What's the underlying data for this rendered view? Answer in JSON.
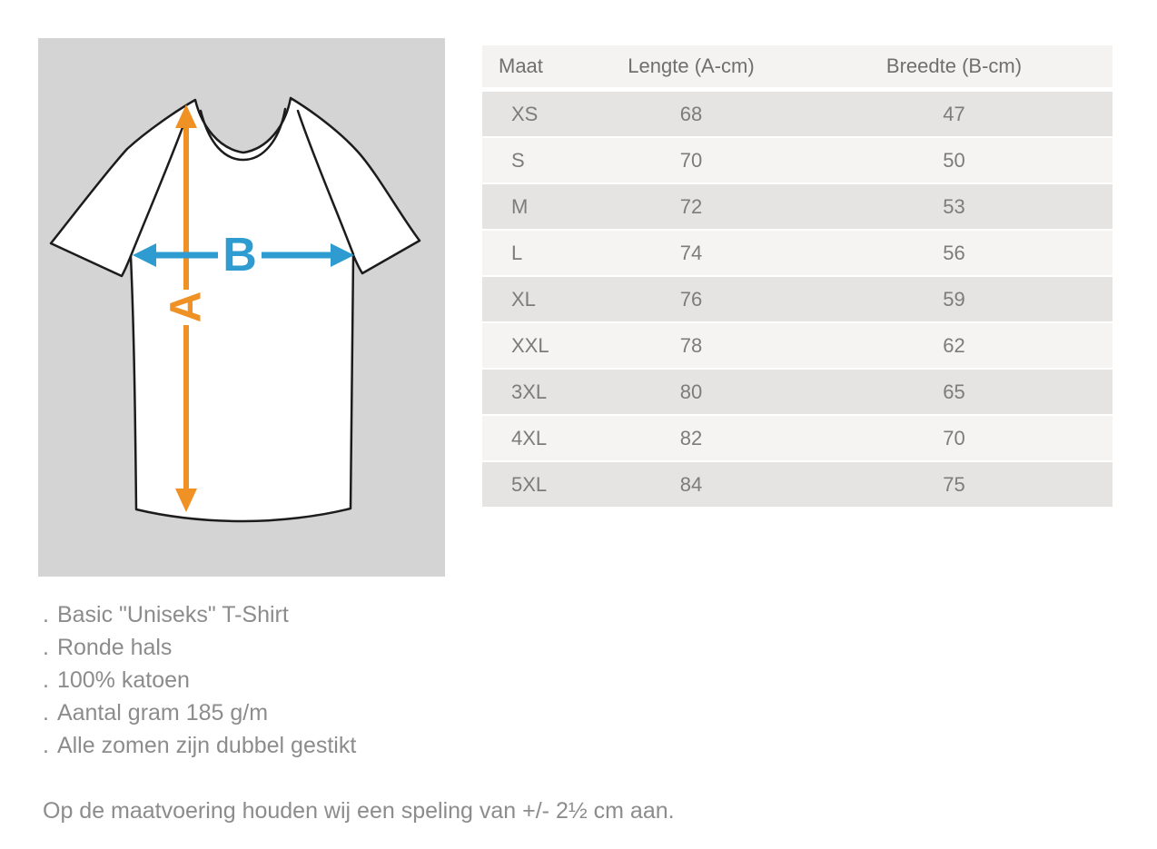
{
  "diagram": {
    "length_label": "A",
    "width_label": "B",
    "colors": {
      "length_arrow": "#EF9125",
      "width_arrow": "#2E9BD1",
      "panel_bg": "#D4D4D4",
      "shirt_outline": "#1C1C1C",
      "shirt_fill": "#FFFFFF"
    }
  },
  "table": {
    "columns": [
      "Maat",
      "Lengte (A-cm)",
      "Breedte (B-cm)"
    ],
    "rows": [
      {
        "maat": "XS",
        "lengte": "68",
        "breedte": "47"
      },
      {
        "maat": "S",
        "lengte": "70",
        "breedte": "50"
      },
      {
        "maat": "M",
        "lengte": "72",
        "breedte": "53"
      },
      {
        "maat": "L",
        "lengte": "74",
        "breedte": "56"
      },
      {
        "maat": "XL",
        "lengte": "76",
        "breedte": "59"
      },
      {
        "maat": "XXL",
        "lengte": "78",
        "breedte": "62"
      },
      {
        "maat": "3XL",
        "lengte": "80",
        "breedte": "65"
      },
      {
        "maat": "4XL",
        "lengte": "82",
        "breedte": "70"
      },
      {
        "maat": "5XL",
        "lengte": "84",
        "breedte": "75"
      }
    ]
  },
  "features": {
    "bullet": ".",
    "items": [
      "Basic \"Uniseks\" T-Shirt",
      "Ronde hals",
      "100% katoen",
      "Aantal gram 185 g/m",
      "Alle zomen zijn dubbel gestikt"
    ]
  },
  "notes": {
    "tolerance": "Op de maatvoering houden wij een speling van +/- 2½ cm aan."
  }
}
